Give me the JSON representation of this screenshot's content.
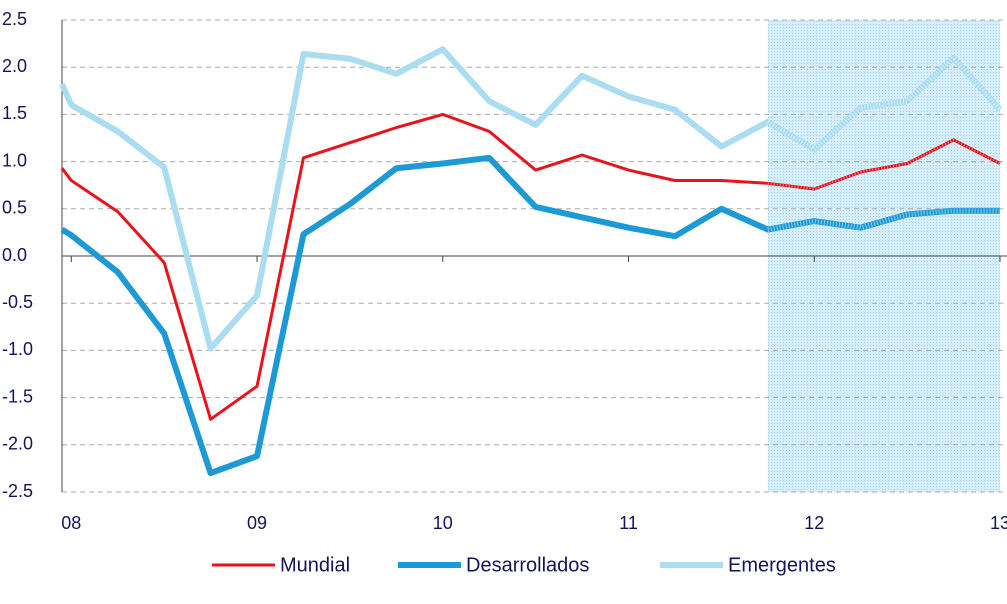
{
  "chart_data": {
    "type": "line",
    "x": [
      2007.95,
      2008,
      2008.25,
      2008.5,
      2008.75,
      2009,
      2009.25,
      2009.5,
      2009.75,
      2010,
      2010.25,
      2010.5,
      2010.75,
      2011,
      2011.25,
      2011.5,
      2011.75,
      2012,
      2012.25,
      2012.5,
      2012.75,
      2013
    ],
    "series": [
      {
        "name": "Mundial",
        "color": "#e8141b",
        "values": [
          0.93,
          0.8,
          0.47,
          -0.07,
          -1.73,
          -1.38,
          1.04,
          1.2,
          1.36,
          1.5,
          1.32,
          0.91,
          1.07,
          0.91,
          0.8,
          0.8,
          0.77,
          0.71,
          0.89,
          0.98,
          1.23,
          0.98
        ]
      },
      {
        "name": "Desarrollados",
        "color": "#1d9ad6",
        "values": [
          0.28,
          0.22,
          -0.17,
          -0.82,
          -2.3,
          -2.12,
          0.23,
          0.55,
          0.93,
          0.98,
          1.04,
          0.52,
          0.41,
          0.3,
          0.21,
          0.5,
          0.28,
          0.37,
          0.3,
          0.44,
          0.48,
          0.48
        ]
      },
      {
        "name": "Emergentes",
        "color": "#aadcf2",
        "values": [
          1.82,
          1.6,
          1.32,
          0.94,
          -0.98,
          -0.42,
          2.14,
          2.09,
          1.93,
          2.19,
          1.64,
          1.39,
          1.91,
          1.69,
          1.55,
          1.16,
          1.42,
          1.13,
          1.57,
          1.64,
          2.1,
          1.55
        ]
      }
    ],
    "xlim": [
      2007.95,
      2013
    ],
    "xticks": [
      {
        "value": 2008,
        "label": "08"
      },
      {
        "value": 2009,
        "label": "09"
      },
      {
        "value": 2010,
        "label": "10"
      },
      {
        "value": 2011,
        "label": "11"
      },
      {
        "value": 2012,
        "label": "12"
      },
      {
        "value": 2013,
        "label": "13"
      }
    ],
    "ylim": [
      -2.5,
      2.5
    ],
    "yticks": [
      {
        "value": 2.5,
        "label": "2.5"
      },
      {
        "value": 2,
        "label": "2.0"
      },
      {
        "value": 1.5,
        "label": "1.5"
      },
      {
        "value": 1,
        "label": "1.0"
      },
      {
        "value": 0.5,
        "label": "0.5"
      },
      {
        "value": 0,
        "label": "0.0"
      },
      {
        "value": -0.5,
        "label": "-0.5"
      },
      {
        "value": -1,
        "label": "-1.0"
      },
      {
        "value": -1.5,
        "label": "-1.5"
      },
      {
        "value": -2,
        "label": "-2.0"
      },
      {
        "value": -2.5,
        "label": "-2.5"
      }
    ],
    "grid": true,
    "forecast_start": 2011.75,
    "legend": "bottom"
  }
}
